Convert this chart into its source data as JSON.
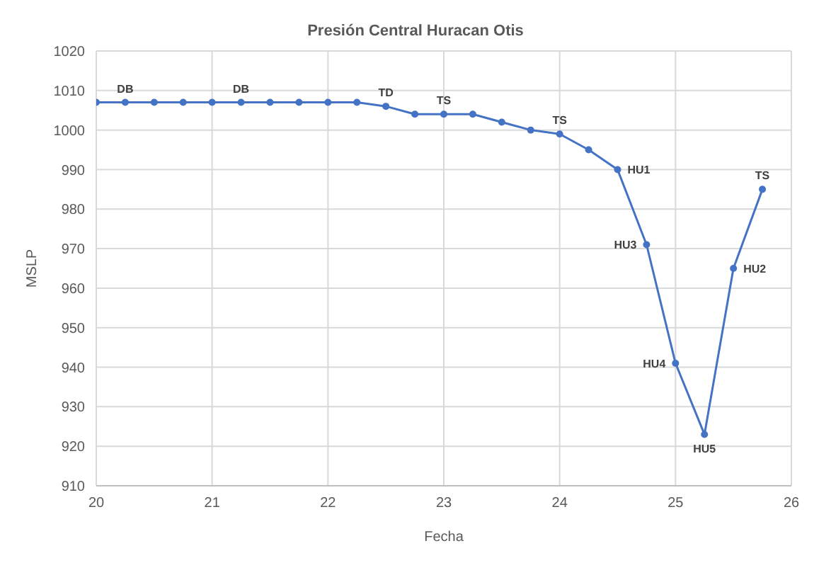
{
  "chart_data": {
    "type": "line",
    "title": "Presión Central Huracan Otis",
    "xlabel": "Fecha",
    "ylabel": "MSLP",
    "x": [
      20,
      20.25,
      20.5,
      20.75,
      21,
      21.25,
      21.5,
      21.75,
      22,
      22.25,
      22.5,
      22.75,
      23,
      23.25,
      23.5,
      23.75,
      24,
      24.25,
      24.5,
      24.75,
      25,
      25.25,
      25.5,
      25.75
    ],
    "series": [
      {
        "color": "#4472c4",
        "values": [
          1007,
          1007,
          1007,
          1007,
          1007,
          1007,
          1007,
          1007,
          1007,
          1007,
          1006,
          1004,
          1004,
          1004,
          1002,
          1000,
          999,
          995,
          990,
          971,
          941,
          923,
          965,
          985
        ]
      }
    ],
    "xlim": [
      20,
      26
    ],
    "xticks": [
      20,
      21,
      22,
      23,
      24,
      25,
      26
    ],
    "ylim": [
      910,
      1020
    ],
    "yticks": [
      910,
      920,
      930,
      940,
      950,
      960,
      970,
      980,
      990,
      1000,
      1010,
      1020
    ],
    "grid": true,
    "marker": "circle",
    "line_style": "solid",
    "annotations": [
      {
        "text": "DB",
        "x": 20.25,
        "y": 1007
      },
      {
        "text": "DB",
        "x": 21.25,
        "y": 1007
      },
      {
        "text": "TD",
        "x": 22.5,
        "y": 1006
      },
      {
        "text": "TS",
        "x": 23,
        "y": 1004
      },
      {
        "text": "TS",
        "x": 24,
        "y": 999
      },
      {
        "text": "HU1",
        "x": 24.5,
        "y": 990
      },
      {
        "text": "HU3",
        "x": 24.75,
        "y": 971
      },
      {
        "text": "HU4",
        "x": 25,
        "y": 941
      },
      {
        "text": "HU5",
        "x": 25.25,
        "y": 923
      },
      {
        "text": "HU2",
        "x": 25.5,
        "y": 965
      },
      {
        "text": "TS",
        "x": 25.75,
        "y": 985
      }
    ]
  }
}
